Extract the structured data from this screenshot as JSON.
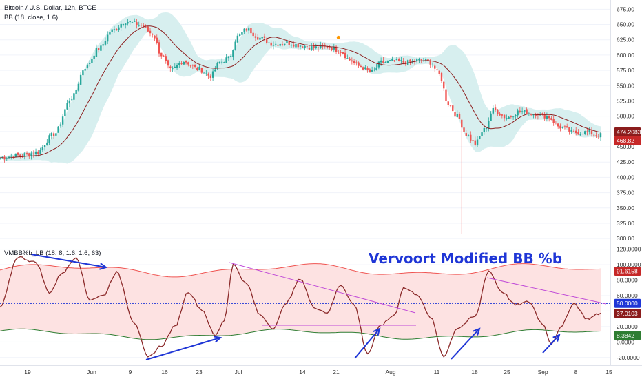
{
  "header": {
    "symbol": "Bitcoin / U.S. Dollar, 12h, BTCE",
    "indicator": "BB (18, close, 1.6)",
    "osc_label": "VMBB%b_LB (18, 8, 1.6, 1.6, 63)",
    "annotation": "Vervoort Modified BB %b"
  },
  "colors": {
    "up": "#26a69a",
    "down": "#ef5350",
    "bb_fill": "#d7efef",
    "bb_mid": "#8d1f1f",
    "osc_line": "#8b2a2a",
    "osc_fill": "#fde2e2",
    "upper_band": "#ef5350",
    "lower_band": "#2e7d32",
    "mid_line": "#1f36d6",
    "trend_line": "#c04ad8",
    "arrow": "#1f36d6",
    "dot": "#ff9800",
    "tag_red": "#c62828",
    "tag_dark": "#8b1c1c",
    "tag_blue": "#1f36d6",
    "tag_green": "#2e7d32"
  },
  "chart_data": [
    {
      "type": "candlestick",
      "title": "Bitcoin / U.S. Dollar, 12h, BTCE",
      "ylim": [
        290,
        690
      ],
      "y_ticks": [
        "675.00",
        "650.00",
        "625.00",
        "600.00",
        "575.00",
        "550.00",
        "525.00",
        "500.00",
        "475.00",
        "450.00",
        "425.00",
        "400.00",
        "375.00",
        "350.00",
        "325.00",
        "300.00"
      ],
      "x_ticks": [
        "19",
        "Jun",
        "9",
        "16",
        "23",
        "Jul",
        "14",
        "21",
        "Aug",
        "11",
        "18",
        "25",
        "Sep",
        "8",
        "15"
      ],
      "close_anchors": [
        [
          0,
          432
        ],
        [
          8,
          436
        ],
        [
          16,
          440
        ],
        [
          24,
          470
        ],
        [
          32,
          530
        ],
        [
          38,
          580
        ],
        [
          44,
          610
        ],
        [
          50,
          640
        ],
        [
          56,
          655
        ],
        [
          62,
          650
        ],
        [
          68,
          635
        ],
        [
          72,
          600
        ],
        [
          76,
          575
        ],
        [
          82,
          590
        ],
        [
          88,
          578
        ],
        [
          94,
          566
        ],
        [
          98,
          588
        ],
        [
          102,
          595
        ],
        [
          106,
          630
        ],
        [
          110,
          642
        ],
        [
          116,
          628
        ],
        [
          122,
          618
        ],
        [
          128,
          620
        ],
        [
          134,
          616
        ],
        [
          140,
          612
        ],
        [
          146,
          614
        ],
        [
          152,
          606
        ],
        [
          156,
          592
        ],
        [
          160,
          582
        ],
        [
          166,
          572
        ],
        [
          170,
          588
        ],
        [
          176,
          590
        ],
        [
          182,
          588
        ],
        [
          188,
          592
        ],
        [
          192,
          588
        ],
        [
          196,
          568
        ],
        [
          200,
          520
        ],
        [
          204,
          500
        ],
        [
          208,
          470
        ],
        [
          212,
          455
        ],
        [
          216,
          478
        ],
        [
          220,
          510
        ],
        [
          226,
          498
        ],
        [
          232,
          508
        ],
        [
          238,
          504
        ],
        [
          244,
          500
        ],
        [
          250,
          482
        ],
        [
          256,
          473
        ],
        [
          262,
          474
        ],
        [
          266,
          470
        ],
        [
          268,
          469
        ]
      ],
      "series": [
        {
          "name": "BB (18, close, 1.6)",
          "role": "basis"
        }
      ],
      "markers": [
        {
          "index": 151,
          "label": "event dot"
        }
      ],
      "last_values": {
        "upper_tag": "474.2083",
        "close_tag": "468.82"
      }
    },
    {
      "type": "line",
      "title": "VMBB%b_LB (18, 8, 1.6, 1.6, 63)",
      "ylim": [
        -30,
        125
      ],
      "y_ticks": [
        "120.0000",
        "100.0000",
        "80.0000",
        "60.0000",
        "40.0000",
        "20.0000",
        "0.0000",
        "-20.0000"
      ],
      "osc_anchors": [
        [
          0,
          45
        ],
        [
          8,
          110
        ],
        [
          16,
          103
        ],
        [
          22,
          64
        ],
        [
          28,
          90
        ],
        [
          34,
          110
        ],
        [
          40,
          55
        ],
        [
          46,
          60
        ],
        [
          52,
          90
        ],
        [
          60,
          25
        ],
        [
          66,
          -20
        ],
        [
          72,
          -5
        ],
        [
          78,
          20
        ],
        [
          84,
          65
        ],
        [
          90,
          42
        ],
        [
          96,
          8
        ],
        [
          100,
          28
        ],
        [
          104,
          100
        ],
        [
          110,
          75
        ],
        [
          116,
          35
        ],
        [
          122,
          18
        ],
        [
          128,
          52
        ],
        [
          134,
          82
        ],
        [
          140,
          45
        ],
        [
          146,
          38
        ],
        [
          152,
          74
        ],
        [
          158,
          48
        ],
        [
          164,
          -15
        ],
        [
          170,
          22
        ],
        [
          176,
          35
        ],
        [
          180,
          70
        ],
        [
          186,
          62
        ],
        [
          192,
          32
        ],
        [
          198,
          -18
        ],
        [
          204,
          18
        ],
        [
          212,
          33
        ],
        [
          218,
          92
        ],
        [
          224,
          65
        ],
        [
          230,
          48
        ],
        [
          236,
          52
        ],
        [
          242,
          24
        ],
        [
          246,
          -2
        ],
        [
          250,
          18
        ],
        [
          256,
          50
        ],
        [
          262,
          30
        ],
        [
          268,
          37
        ]
      ],
      "series": [
        {
          "name": "Upper Band",
          "value_tag": "91.6158"
        },
        {
          "name": "Mid",
          "value": 50,
          "value_tag": "50.0000"
        },
        {
          "name": "%b",
          "value_tag": "37.0103"
        },
        {
          "name": "Lower Band",
          "value_tag": "8.3842"
        }
      ]
    }
  ]
}
